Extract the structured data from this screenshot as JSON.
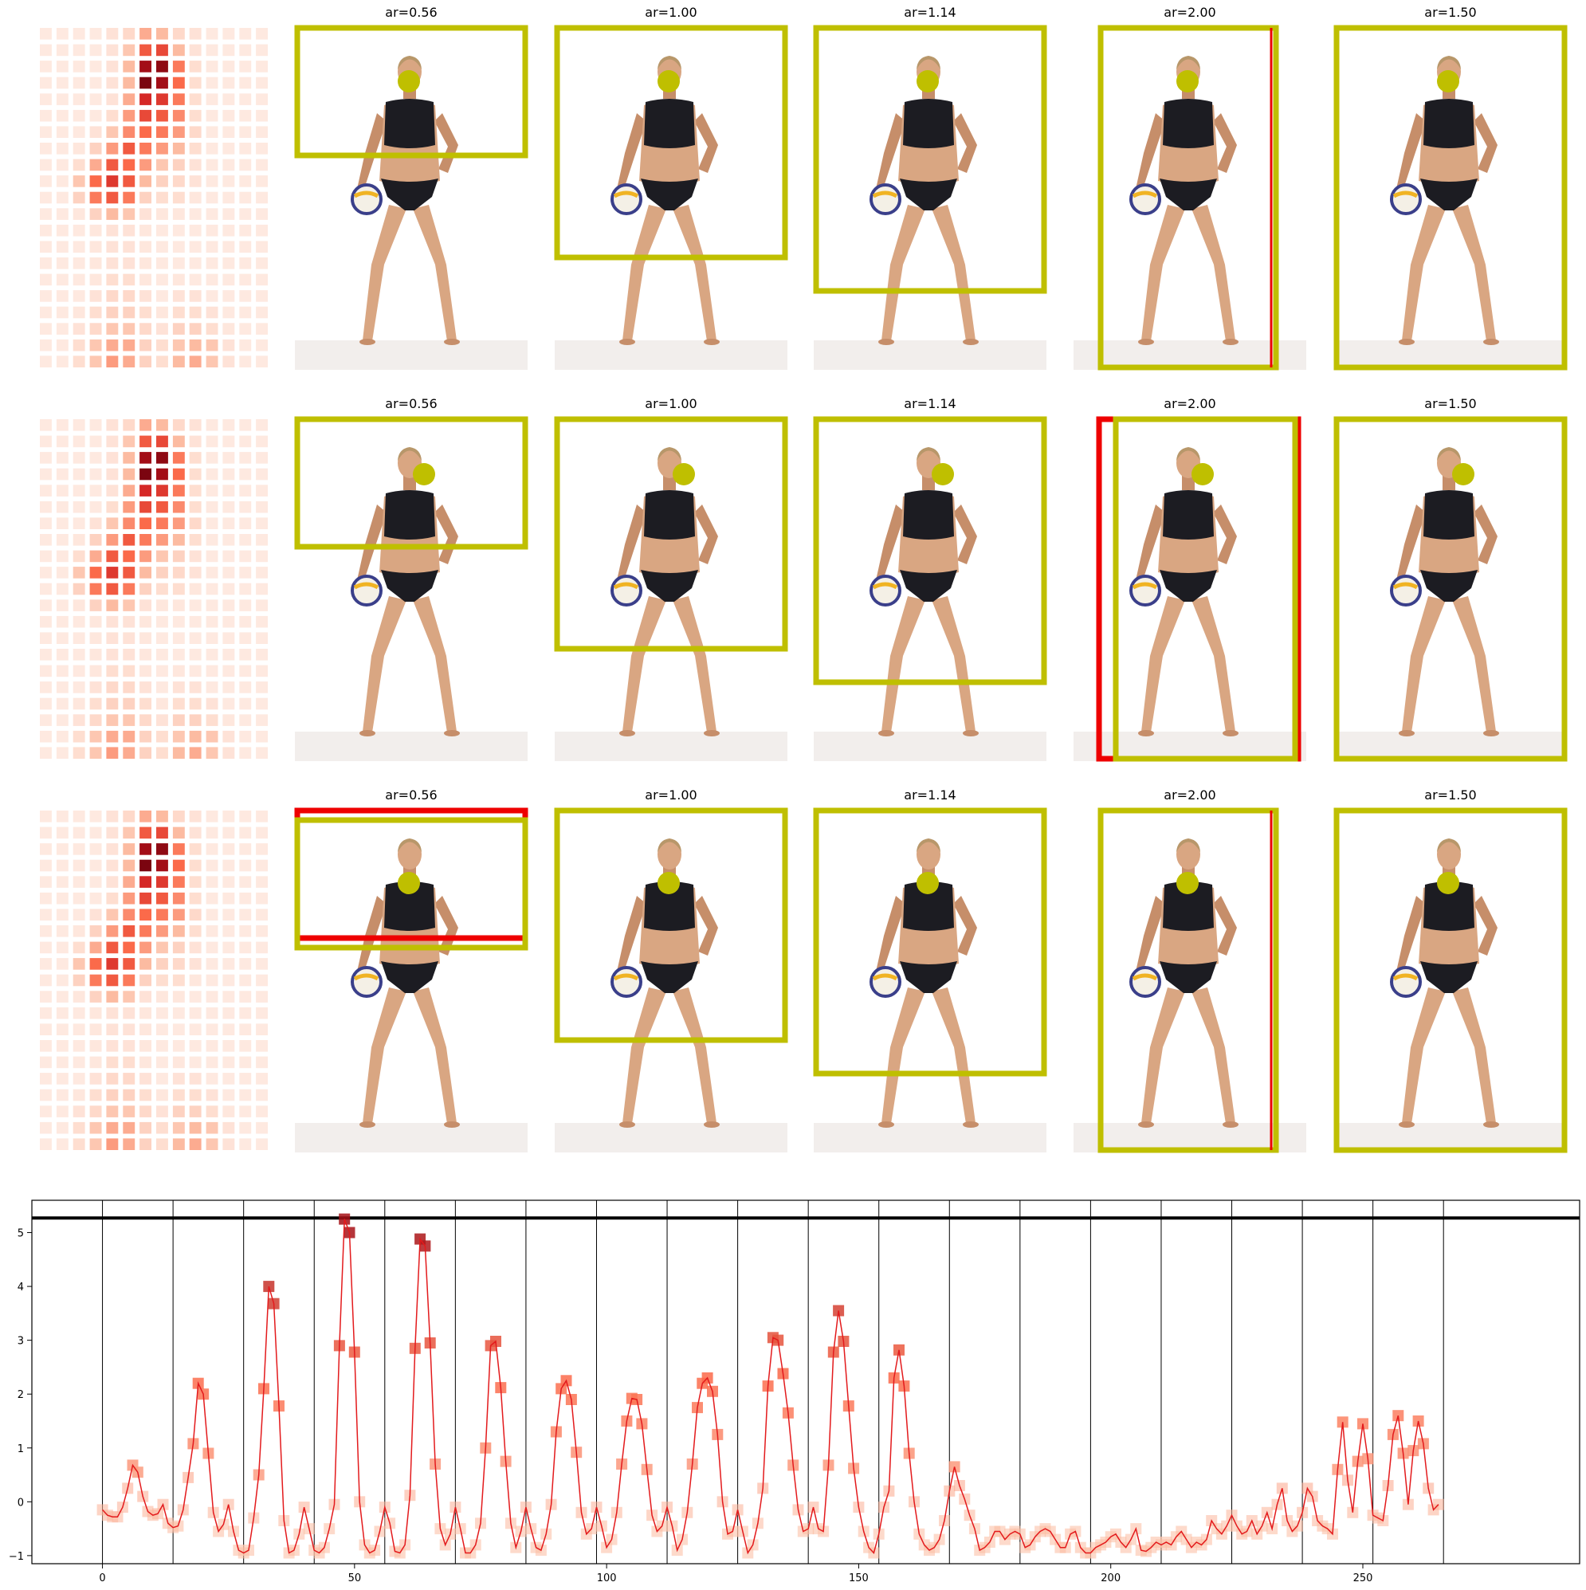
{
  "grid": {
    "rows": [
      {
        "titles": [
          "ar=0.56",
          "ar=1.00",
          "ar=1.14",
          "ar=2.00",
          "ar=1.50"
        ]
      },
      {
        "titles": [
          "ar=0.56",
          "ar=1.00",
          "ar=1.14",
          "ar=2.00",
          "ar=1.50"
        ]
      },
      {
        "titles": [
          "ar=0.56",
          "ar=1.00",
          "ar=1.14",
          "ar=2.00",
          "ar=1.50"
        ]
      }
    ],
    "colors": {
      "crop_box": "#bfbf00",
      "alt_box": "#ee0000",
      "focus_dot": "#bfbf00",
      "heat": "#b40426"
    }
  },
  "chart_data": {
    "type": "line",
    "title": "",
    "xlabel": "",
    "ylabel": "",
    "xlim": [
      -14,
      293
    ],
    "ylim": [
      -1.15,
      5.6
    ],
    "x_ticks": [
      0,
      50,
      100,
      150,
      200,
      250
    ],
    "y_ticks": [
      -1,
      0,
      1,
      2,
      3,
      4,
      5
    ],
    "threshold_line": 5.27,
    "vertical_lines": [
      0,
      14,
      28,
      42,
      56,
      70,
      84,
      98,
      112,
      126,
      140,
      154,
      168,
      182,
      196,
      210,
      224,
      238,
      252,
      266
    ],
    "grid": false,
    "series": [
      {
        "values": [
          -0.15,
          -0.25,
          -0.28,
          -0.28,
          -0.1,
          0.25,
          0.68,
          0.55,
          0.1,
          -0.18,
          -0.25,
          -0.22,
          -0.05,
          -0.4,
          -0.48,
          -0.45,
          -0.15,
          0.45,
          1.08,
          2.2,
          2.0,
          0.9,
          -0.2,
          -0.55,
          -0.42,
          -0.05,
          -0.55,
          -0.9,
          -0.95,
          -0.9,
          -0.3,
          0.5,
          2.1,
          4.0,
          3.68,
          1.78,
          -0.35,
          -0.95,
          -0.9,
          -0.6,
          -0.1,
          -0.5,
          -0.9,
          -0.95,
          -0.85,
          -0.5,
          -0.05,
          2.9,
          5.25,
          5.0,
          2.78,
          0.0,
          -0.8,
          -0.95,
          -0.9,
          -0.55,
          -0.1,
          -0.4,
          -0.92,
          -0.95,
          -0.8,
          0.12,
          2.85,
          4.88,
          4.75,
          2.95,
          0.7,
          -0.5,
          -0.8,
          -0.6,
          -0.1,
          -0.5,
          -0.95,
          -0.95,
          -0.8,
          -0.4,
          1.0,
          2.9,
          2.98,
          2.12,
          0.75,
          -0.4,
          -0.85,
          -0.55,
          -0.1,
          -0.5,
          -0.85,
          -0.9,
          -0.6,
          -0.05,
          1.3,
          2.1,
          2.25,
          1.9,
          0.92,
          -0.2,
          -0.6,
          -0.5,
          -0.1,
          -0.45,
          -0.85,
          -0.7,
          -0.2,
          0.7,
          1.5,
          1.92,
          1.9,
          1.45,
          0.6,
          -0.25,
          -0.55,
          -0.45,
          -0.1,
          -0.45,
          -0.9,
          -0.7,
          -0.2,
          0.7,
          1.75,
          2.2,
          2.3,
          2.05,
          1.25,
          0.0,
          -0.6,
          -0.55,
          -0.15,
          -0.55,
          -0.95,
          -0.8,
          -0.4,
          0.25,
          2.15,
          3.05,
          3.0,
          2.38,
          1.65,
          0.68,
          -0.15,
          -0.55,
          -0.5,
          -0.1,
          -0.5,
          -0.55,
          0.68,
          2.78,
          3.55,
          2.98,
          1.78,
          0.62,
          -0.1,
          -0.55,
          -0.85,
          -0.95,
          -0.6,
          -0.1,
          0.2,
          2.3,
          2.82,
          2.15,
          0.9,
          0.0,
          -0.6,
          -0.8,
          -0.9,
          -0.85,
          -0.7,
          -0.35,
          0.2,
          0.65,
          0.3,
          0.05,
          -0.25,
          -0.5,
          -0.9,
          -0.85,
          -0.75,
          -0.55,
          -0.55,
          -0.7,
          -0.6,
          -0.55,
          -0.6,
          -0.85,
          -0.8,
          -0.65,
          -0.55,
          -0.5,
          -0.55,
          -0.7,
          -0.85,
          -0.85,
          -0.6,
          -0.55,
          -0.85,
          -0.95,
          -0.95,
          -0.85,
          -0.8,
          -0.75,
          -0.65,
          -0.6,
          -0.75,
          -0.85,
          -0.7,
          -0.5,
          -0.9,
          -0.92,
          -0.85,
          -0.75,
          -0.8,
          -0.75,
          -0.8,
          -0.65,
          -0.55,
          -0.7,
          -0.85,
          -0.75,
          -0.8,
          -0.7,
          -0.35,
          -0.5,
          -0.6,
          -0.45,
          -0.25,
          -0.45,
          -0.6,
          -0.55,
          -0.35,
          -0.6,
          -0.45,
          -0.2,
          -0.5,
          -0.05,
          0.25,
          -0.35,
          -0.55,
          -0.45,
          -0.2,
          0.25,
          0.1,
          -0.35,
          -0.45,
          -0.5,
          -0.6,
          0.6,
          1.48,
          0.4,
          -0.2,
          0.75,
          1.45,
          0.8,
          -0.25,
          -0.3,
          -0.35,
          0.3,
          1.25,
          1.6,
          0.9,
          -0.05,
          0.95,
          1.5,
          1.08,
          0.25,
          -0.15,
          -0.05
        ]
      }
    ]
  }
}
